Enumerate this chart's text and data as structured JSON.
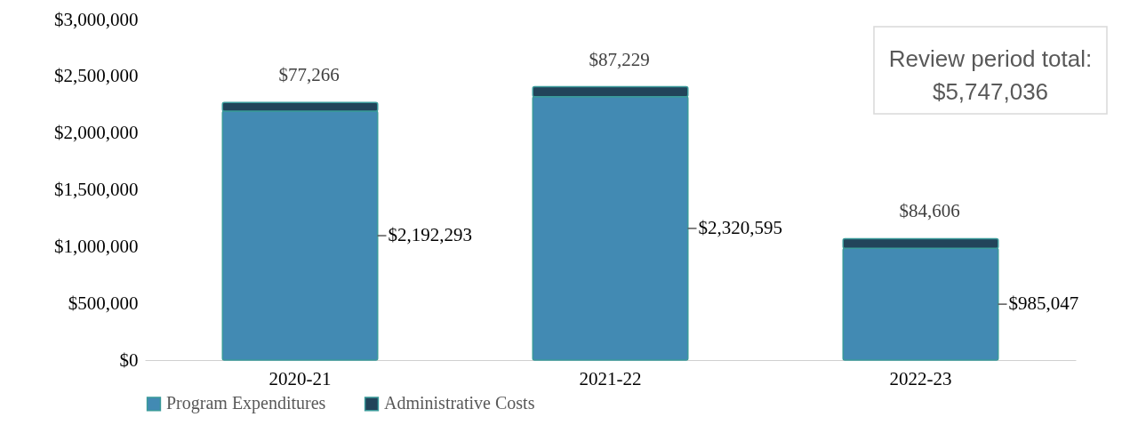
{
  "chart_data": {
    "type": "bar",
    "stacked": true,
    "categories": [
      "2020-21",
      "2021-22",
      "2022-23"
    ],
    "series": [
      {
        "name": "Program Expenditures",
        "color": "#428ab3",
        "values": [
          2192293,
          2320595,
          985047
        ],
        "value_labels": [
          "$2,192,293",
          "$2,320,595",
          "$985,047"
        ]
      },
      {
        "name": "Administrative Costs",
        "color": "#22445a",
        "values": [
          77266,
          87229,
          84606
        ],
        "value_labels": [
          "$77,266",
          "$87,229",
          "$84,606"
        ]
      }
    ],
    "ylim": [
      0,
      3000000
    ],
    "yticks": [
      {
        "value": 0,
        "label": "$0"
      },
      {
        "value": 500000,
        "label": "$500,000"
      },
      {
        "value": 1000000,
        "label": "$1,000,000"
      },
      {
        "value": 1500000,
        "label": "$1,500,000"
      },
      {
        "value": 2000000,
        "label": "$2,000,000"
      },
      {
        "value": 2500000,
        "label": "$2,500,000"
      },
      {
        "value": 3000000,
        "label": "$3,000,000"
      }
    ],
    "grid": false,
    "legend": "bottom",
    "annotations": [
      "Review period total:",
      "$5,747,036"
    ]
  }
}
